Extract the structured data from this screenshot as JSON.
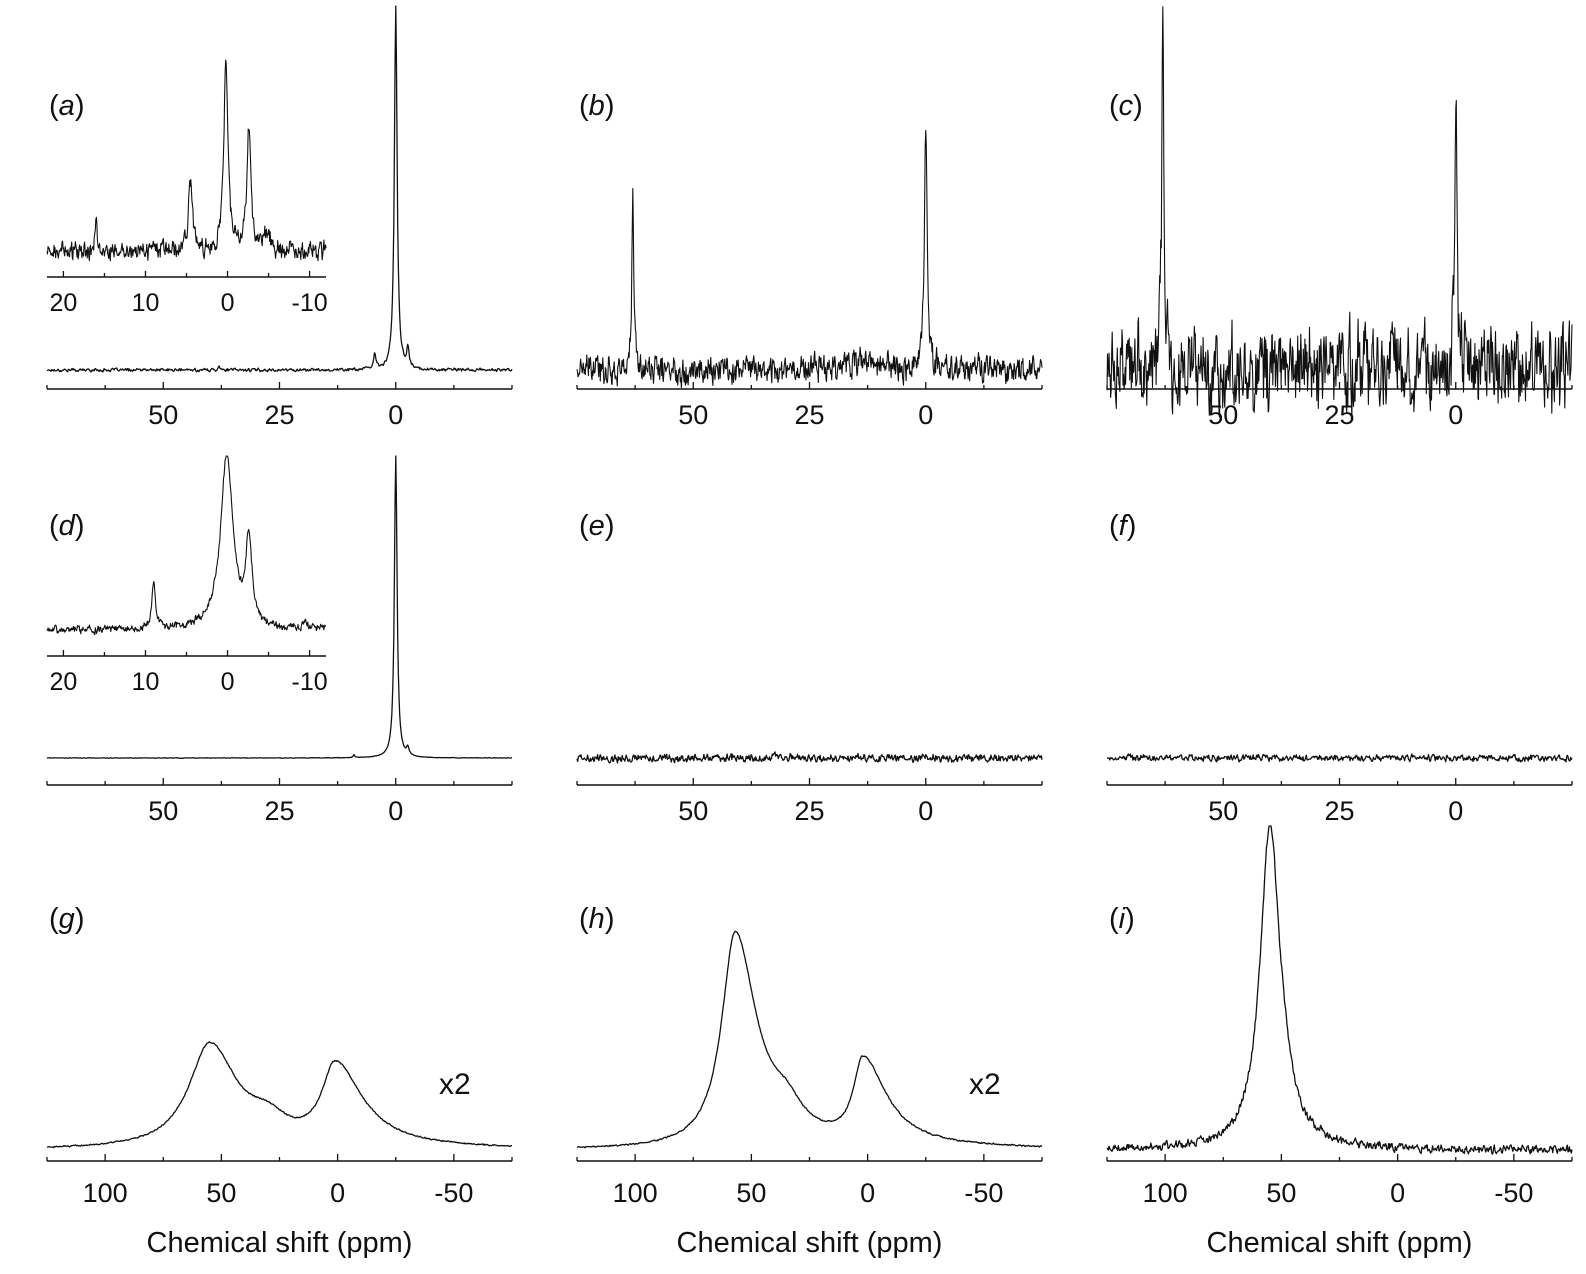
{
  "chart_data": [
    {
      "id": "a",
      "type": "line",
      "label": "(a)",
      "label_letter": "a",
      "xlabel": "",
      "xlim": [
        75,
        -25
      ],
      "x_reversed": true,
      "ticks": [
        50,
        25,
        0
      ],
      "peaks": [
        {
          "x": 0,
          "height": 1.0,
          "width": 0.35
        },
        {
          "x": 4.5,
          "height": 0.04,
          "width": 0.3
        },
        {
          "x": -2.6,
          "height": 0.05,
          "width": 0.3
        },
        {
          "x": 38,
          "height": 0.015,
          "width": 0.2
        }
      ],
      "noise": 0.004,
      "inset": {
        "xlim": [
          22,
          -12
        ],
        "ticks": [
          20,
          10,
          0,
          -10
        ],
        "peaks": [
          {
            "x": 0.2,
            "height": 1.0,
            "width": 0.3
          },
          {
            "x": -2.6,
            "height": 0.62,
            "width": 0.3
          },
          {
            "x": 4.5,
            "height": 0.38,
            "width": 0.3
          },
          {
            "x": 16,
            "height": 0.2,
            "width": 0.15
          },
          {
            "x": -4.8,
            "height": 0.08,
            "width": 0.5
          }
        ],
        "noise": 0.045,
        "clip_top": true
      }
    },
    {
      "id": "b",
      "type": "line",
      "label": "(b)",
      "label_letter": "b",
      "xlabel": "",
      "xlim": [
        75,
        -25
      ],
      "x_reversed": true,
      "ticks": [
        50,
        25,
        0
      ],
      "peaks": [
        {
          "x": 63,
          "height": 0.48,
          "width": 0.25
        },
        {
          "x": 0,
          "height": 0.67,
          "width": 0.35
        },
        {
          "x": 15,
          "height": 0.02,
          "width": 8
        }
      ],
      "noise": 0.035
    },
    {
      "id": "c",
      "type": "line",
      "label": "(c)",
      "label_letter": "c",
      "xlabel": "",
      "xlim": [
        75,
        -25
      ],
      "x_reversed": true,
      "ticks": [
        50,
        25,
        0
      ],
      "peaks": [
        {
          "x": 63,
          "height": 1.0,
          "width": 0.25
        },
        {
          "x": 0,
          "height": 0.72,
          "width": 0.3
        },
        {
          "x": 12,
          "height": 0.03,
          "width": 10
        }
      ],
      "noise": 0.1
    },
    {
      "id": "d",
      "type": "line",
      "label": "(d)",
      "label_letter": "d",
      "xlabel": "",
      "xlim": [
        75,
        -25
      ],
      "x_reversed": true,
      "ticks": [
        50,
        25,
        0
      ],
      "peaks": [
        {
          "x": 0,
          "height": 1.0,
          "width": 0.35
        },
        {
          "x": -2.6,
          "height": 0.025,
          "width": 0.3
        },
        {
          "x": 9,
          "height": 0.01,
          "width": 0.2
        }
      ],
      "noise": 0.0008,
      "inset": {
        "xlim": [
          22,
          -12
        ],
        "ticks": [
          20,
          10,
          0,
          -10
        ],
        "peaks": [
          {
            "x": 0.1,
            "height": 1.0,
            "width": 0.9
          },
          {
            "x": -2.6,
            "height": 0.48,
            "width": 0.45
          },
          {
            "x": 9,
            "height": 0.27,
            "width": 0.25
          },
          {
            "x": -9.5,
            "height": 0.05,
            "width": 0.2
          }
        ],
        "noise": 0.02,
        "clip_top": true
      }
    },
    {
      "id": "e",
      "type": "line",
      "label": "(e)",
      "label_letter": "e",
      "xlabel": "",
      "xlim": [
        75,
        -25
      ],
      "x_reversed": true,
      "ticks": [
        50,
        25,
        0
      ],
      "peaks": [],
      "noise": 0.012
    },
    {
      "id": "f",
      "type": "line",
      "label": "(f)",
      "label_letter": "f",
      "xlabel": "",
      "xlim": [
        75,
        -25
      ],
      "x_reversed": true,
      "ticks": [
        50,
        25,
        0
      ],
      "peaks": [],
      "noise": 0.01
    },
    {
      "id": "g",
      "type": "line",
      "label": "(g)",
      "label_letter": "g",
      "xlabel": "Chemical shift (ppm)",
      "xlim": [
        125,
        -75
      ],
      "x_reversed": true,
      "ticks": [
        100,
        50,
        0,
        -50
      ],
      "scale_note": "x2",
      "peaks": [
        {
          "x": 55,
          "height": 0.32,
          "width_left": 11,
          "width_right": 14
        },
        {
          "x": 1,
          "height": 0.25,
          "width_left": 7,
          "width_right": 14
        },
        {
          "x": 30,
          "height": 0.06,
          "width": 10
        }
      ],
      "noise": 0.002
    },
    {
      "id": "h",
      "type": "line",
      "label": "(h)",
      "label_letter": "h",
      "xlabel": "Chemical shift (ppm)",
      "xlim": [
        125,
        -75
      ],
      "x_reversed": true,
      "ticks": [
        100,
        50,
        0,
        -50
      ],
      "scale_note": "x2",
      "peaks": [
        {
          "x": 57,
          "height": 0.66,
          "width_left": 7,
          "width_right": 11
        },
        {
          "x": 2,
          "height": 0.26,
          "width_left": 5,
          "width_right": 12
        },
        {
          "x": 35,
          "height": 0.08,
          "width": 9
        }
      ],
      "noise": 0.002
    },
    {
      "id": "i",
      "type": "line",
      "label": "(i)",
      "label_letter": "i",
      "xlabel": "Chemical shift (ppm)",
      "xlim": [
        125,
        -75
      ],
      "x_reversed": true,
      "ticks": [
        100,
        50,
        0,
        -50
      ],
      "peaks": [
        {
          "x": 55,
          "height": 1.0,
          "width_left": 5,
          "width_right": 5.5
        },
        {
          "x": 48,
          "height": 0.04,
          "width": 3
        }
      ],
      "noise": 0.012
    }
  ]
}
